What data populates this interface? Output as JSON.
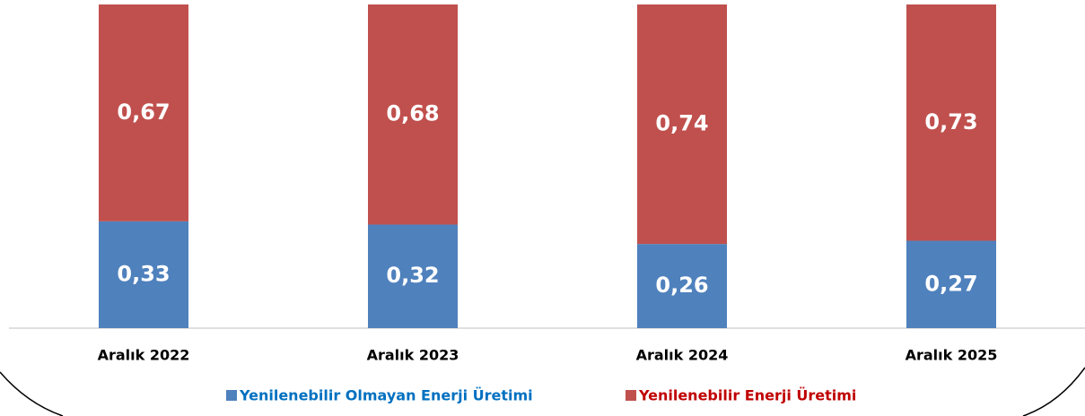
{
  "chart_data": {
    "type": "stacked_bar",
    "categories": [
      "Aralık 2022",
      "Aralık 2023",
      "Aralık 2024",
      "Aralık 2025"
    ],
    "series": [
      {
        "name": "Yenilenebilir Olmayan Enerji Üretimi",
        "color": "#4f81bd",
        "values": [
          0.33,
          0.32,
          0.26,
          0.27
        ],
        "value_labels": [
          "0,33",
          "0,32",
          "0,26",
          "0,27"
        ]
      },
      {
        "name": "Yenilenebilir Enerji Üretimi",
        "color": "#c0504d",
        "values": [
          0.67,
          0.68,
          0.74,
          0.73
        ],
        "value_labels": [
          "0,67",
          "0,68",
          "0,74",
          "0,73"
        ]
      }
    ]
  }
}
